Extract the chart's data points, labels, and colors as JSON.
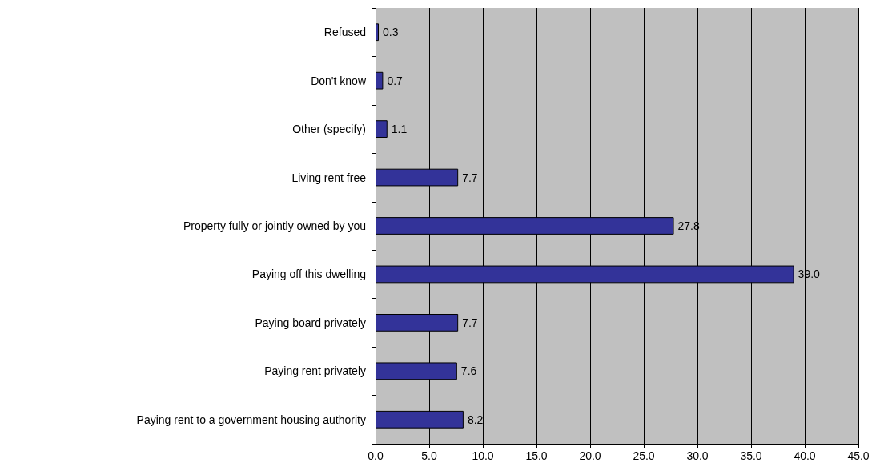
{
  "chart_data": {
    "type": "bar",
    "orientation": "horizontal",
    "categories": [
      "Refused",
      "Don't know",
      "Other (specify)",
      "Living rent free",
      "Property fully or jointly owned by you",
      "Paying off this dwelling",
      "Paying board privately",
      "Paying rent privately",
      "Paying rent to a government housing authority"
    ],
    "values": [
      0.3,
      0.7,
      1.1,
      7.7,
      27.8,
      39.0,
      7.7,
      7.6,
      8.2
    ],
    "value_labels": [
      "0.3",
      "0.7",
      "1.1",
      "7.7",
      "27.8",
      "39.0",
      "7.7",
      "7.6",
      "8.2"
    ],
    "color": "#333399",
    "xlim": [
      0,
      45
    ],
    "xticks": [
      {
        "value": 0,
        "label": "0.0"
      },
      {
        "value": 5,
        "label": "5.0"
      },
      {
        "value": 10,
        "label": "10.0"
      },
      {
        "value": 15,
        "label": "15.0"
      },
      {
        "value": 20,
        "label": "20.0"
      },
      {
        "value": 25,
        "label": "25.0"
      },
      {
        "value": 30,
        "label": "30.0"
      },
      {
        "value": 35,
        "label": "35.0"
      },
      {
        "value": 40,
        "label": "40.0"
      },
      {
        "value": 45,
        "label": "45.0"
      }
    ],
    "grid": "x"
  }
}
